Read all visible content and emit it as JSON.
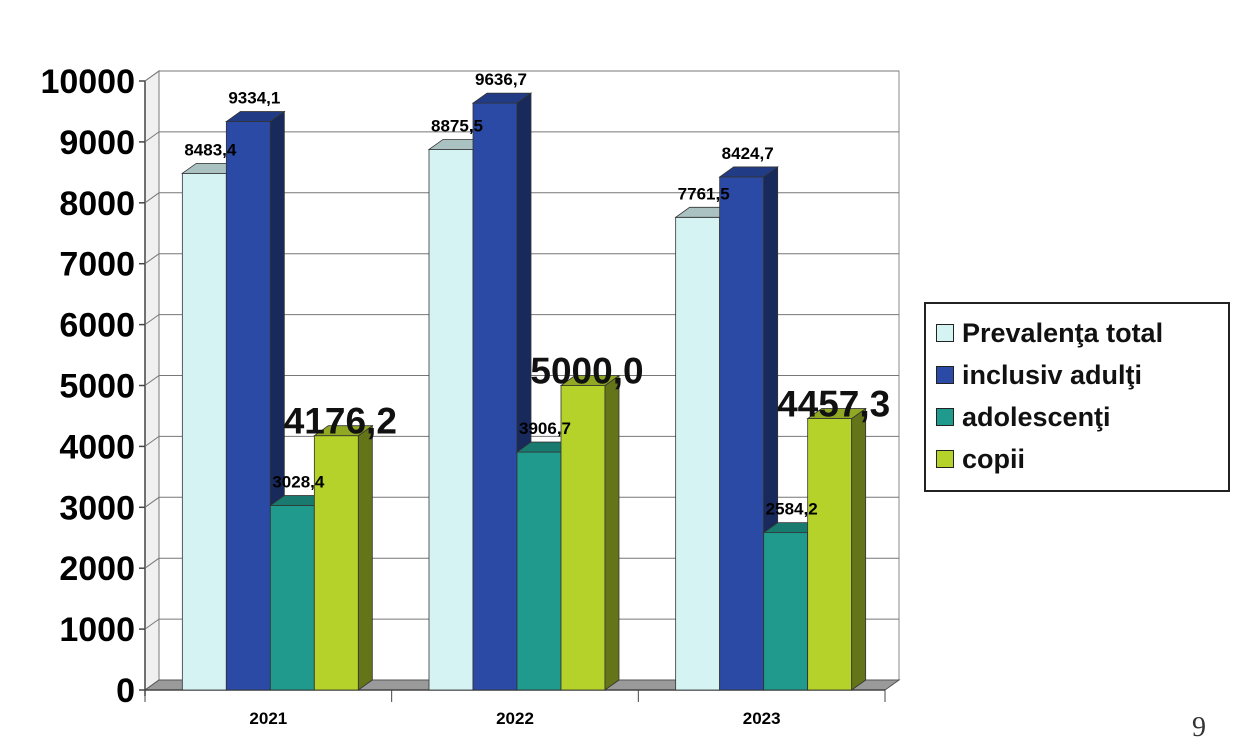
{
  "chart_data": {
    "type": "bar",
    "categories": [
      "2021",
      "2022",
      "2023"
    ],
    "series": [
      {
        "name": "Prevalenţa total",
        "values": [
          8483.4,
          8875.5,
          7761.5
        ],
        "labels": [
          "8483,4",
          "8875,5",
          "7761,5"
        ],
        "label_style": "small",
        "color": "#d6f3f3"
      },
      {
        "name": "inclusiv adulţi",
        "values": [
          9334.1,
          9636.7,
          8424.7
        ],
        "labels": [
          "9334,1",
          "9636,7",
          "8424,7"
        ],
        "label_style": "small",
        "color": "#2b4aa6"
      },
      {
        "name": "adolescenţi",
        "values": [
          3028.4,
          3906.7,
          2584.2
        ],
        "labels": [
          "3028,4",
          "3906,7",
          "2584,2"
        ],
        "label_style": "small",
        "color": "#1f9a8c"
      },
      {
        "name": "copii",
        "values": [
          4176.2,
          5000.0,
          4457.3
        ],
        "labels": [
          "4176,2",
          "5000,0",
          "4457,3"
        ],
        "label_style": "big",
        "color": "#b5d22b"
      }
    ],
    "ylim": [
      0,
      10000
    ],
    "yticks": [
      0,
      1000,
      2000,
      3000,
      4000,
      5000,
      6000,
      7000,
      8000,
      9000,
      10000
    ],
    "grid": true,
    "legend": "right",
    "style": "3d-column"
  },
  "page": {
    "number": "9"
  }
}
